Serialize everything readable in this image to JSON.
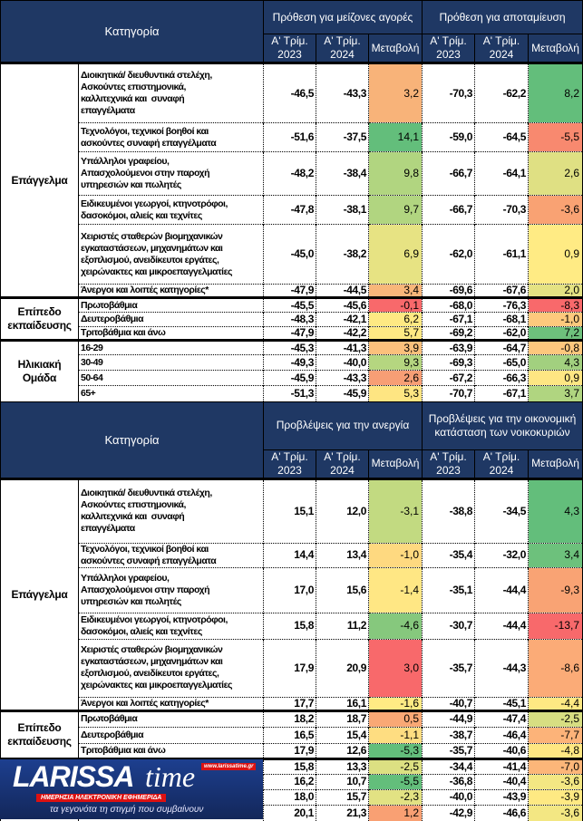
{
  "tables": [
    {
      "header": {
        "category": "Κατηγορία",
        "group1": "Πρόθεση για μείζονες αγορές",
        "group2": "Πρόθεση για αποταμίευση",
        "q2023": "Α' Τρίμ. 2023",
        "q2024": "Α' Τρίμ. 2024",
        "change": "Μεταβολή"
      },
      "groups": [
        {
          "label": "Επάγγελμα",
          "rows": [
            {
              "label": "Διοικητικά/ διευθυντικά στελέχη,\nΑσκούντες επιστημονικά,\nκαλλιτεχνικά και  συναφή\nεπαγγέλματα",
              "values": [
                "-46,5",
                "-43,3",
                "3,2",
                "-70,3",
                "-62,2",
                "8,2"
              ],
              "colors": [
                "#f8b379",
                "#63be7b"
              ]
            },
            {
              "label": "Τεχνολόγοι, τεχνικοί βοηθοί και\nασκούντες συναφή επαγγέλματα",
              "values": [
                "-51,6",
                "-37,5",
                "14,1",
                "-59,0",
                "-64,5",
                "-5,5"
              ],
              "colors": [
                "#63be7b",
                "#f8896f"
              ]
            },
            {
              "label": "Υπάλληλοι γραφείου,\nΑπασχολούμενοι στην παροχή\nυπηρεσιών και πωλητές",
              "values": [
                "-48,2",
                "-38,4",
                "9,8",
                "-66,7",
                "-64,1",
                "2,6"
              ],
              "colors": [
                "#b1d580",
                "#dfe083"
              ]
            },
            {
              "label": "Ειδικευμένοι γεωργοί, κτηνοτρόφοι,\nδασοκόμοι, αλιείς και τεχνίτες",
              "values": [
                "-47,8",
                "-38,1",
                "9,7",
                "-66,7",
                "-70,3",
                "-3,6"
              ],
              "colors": [
                "#b1d580",
                "#f9a273"
              ]
            },
            {
              "label": "Χειριστές σταθερών βιομηχανικών\nεγκαταστάσεων, μηχανημάτων και\nεξοπλισμού, ανειδίκευτοι εργάτες,\nχειρώνακτες και μικροεπαγγελματίες",
              "values": [
                "-45,0",
                "-38,2",
                "6,9",
                "-62,0",
                "-61,1",
                "0,9"
              ],
              "colors": [
                "#e7e383",
                "#ffeb84"
              ]
            },
            {
              "label": "Άνεργοι και λοιπές κατηγορίες*",
              "values": [
                "-47,9",
                "-44,5",
                "3,4",
                "-69,6",
                "-67,6",
                "2,0"
              ],
              "colors": [
                "#f8b67a",
                "#e4e283"
              ]
            }
          ]
        },
        {
          "label": "Επίπεδο εκπαίδευσης",
          "rows": [
            {
              "label": "Πρωτοβάθμια",
              "values": [
                "-45,5",
                "-45,6",
                "-0,1",
                "-68,0",
                "-76,3",
                "-8,3"
              ],
              "colors": [
                "#f8696b",
                "#f8696b"
              ]
            },
            {
              "label": "Δευτεροβάθμια",
              "values": [
                "-48,3",
                "-42,1",
                "6,2",
                "-67,1",
                "-68,1",
                "-1,0"
              ],
              "colors": [
                "#fee983",
                "#fdc97d"
              ]
            },
            {
              "label": "Τριτοβάθμια και άνω",
              "values": [
                "-47,9",
                "-42,2",
                "5,7",
                "-69,2",
                "-62,0",
                "7,2"
              ],
              "colors": [
                "#fee983",
                "#6ec17c"
              ]
            }
          ]
        },
        {
          "label": "Ηλικιακή Ομάδα",
          "rows": [
            {
              "label": "16-29",
              "values": [
                "-45,3",
                "-41,3",
                "3,9",
                "-63,9",
                "-64,7",
                "-0,8"
              ],
              "colors": [
                "#fbc07c",
                "#fdc77d"
              ]
            },
            {
              "label": "30-49",
              "values": [
                "-49,3",
                "-40,0",
                "9,3",
                "-69,3",
                "-65,0",
                "4,3"
              ],
              "colors": [
                "#b5d680",
                "#a2d07f"
              ]
            },
            {
              "label": "50-64",
              "values": [
                "-45,9",
                "-43,3",
                "2,6",
                "-67,2",
                "-66,3",
                "0,9"
              ],
              "colors": [
                "#f79e75",
                "#fee683"
              ]
            },
            {
              "label": "65+",
              "values": [
                "-51,3",
                "-45,9",
                "5,3",
                "-70,7",
                "-67,1",
                "3,7"
              ],
              "colors": [
                "#fee582",
                "#b0d580"
              ]
            }
          ]
        }
      ]
    },
    {
      "header": {
        "category": "Κατηγορία",
        "group1": "Προβλέψεις για την ανεργία",
        "group2": "Προβλέψεις για την οικονομική κατάσταση των νοικοκυριών",
        "q2023": "Α' Τρίμ. 2023",
        "q2024": "Α' Τρίμ. 2024",
        "change": "Μεταβολή"
      },
      "groups": [
        {
          "label": "Επάγγελμα",
          "rows": [
            {
              "label": "Διοικητικά/ διευθυντικά στελέχη,\nΑσκούντες επιστημονικά,\nκαλλιτεχνικά και  συναφή\nεπαγγέλματα",
              "values": [
                "15,1",
                "12,0",
                "-3,1",
                "-38,8",
                "-34,5",
                "4,3"
              ],
              "colors": [
                "#c2da81",
                "#63be7b"
              ]
            },
            {
              "label": "Τεχνολόγοι, τεχνικοί βοηθοί και\nασκούντες συναφή επαγγέλματα",
              "values": [
                "14,4",
                "13,4",
                "-1,0",
                "-35,4",
                "-32,0",
                "3,4"
              ],
              "colors": [
                "#fed980",
                "#6dc17c"
              ]
            },
            {
              "label": "Υπάλληλοι γραφείου,\nΑπασχολούμενοι στην παροχή\nυπηρεσιών και πωλητές",
              "values": [
                "17,0",
                "15,6",
                "-1,4",
                "-35,1",
                "-44,4",
                "-9,3"
              ],
              "colors": [
                "#ffe784",
                "#f9a374"
              ]
            },
            {
              "label": "Ειδικευμένοι γεωργοί, κτηνοτρόφοι,\nδασοκόμοι, αλιείς και τεχνίτες",
              "values": [
                "15,8",
                "11,2",
                "-4,6",
                "-30,7",
                "-44,4",
                "-13,7"
              ],
              "colors": [
                "#86c87d",
                "#f8696b"
              ]
            },
            {
              "label": "Χειριστές σταθερών βιομηχανικών\nεγκαταστάσεων, μηχανημάτων και\nεξοπλισμού, ανειδίκευτοι εργάτες,\nχειρώνακτες και μικροεπαγγελματίες",
              "values": [
                "17,9",
                "20,9",
                "3,0",
                "-35,7",
                "-44,3",
                "-8,6"
              ],
              "colors": [
                "#f8696b",
                "#fbab77"
              ]
            },
            {
              "label": "Άνεργοι και λοιπές κατηγορίες*",
              "values": [
                "17,7",
                "16,1",
                "-1,6",
                "-40,7",
                "-45,1",
                "-4,4"
              ],
              "colors": [
                "#ffeb84",
                "#fee983"
              ]
            }
          ]
        },
        {
          "label": "Επίπεδο εκπαίδευσης",
          "rows": [
            {
              "label": "Πρωτοβάθμια",
              "values": [
                "18,2",
                "18,7",
                "0,5",
                "-44,9",
                "-47,4",
                "-2,5"
              ],
              "colors": [
                "#f9a875",
                "#d7de82"
              ]
            },
            {
              "label": "Δευτεροβάθμια",
              "values": [
                "16,5",
                "15,4",
                "-1,1",
                "-38,7",
                "-46,4",
                "-7,7"
              ],
              "colors": [
                "#fedd81",
                "#fcb379"
              ]
            },
            {
              "label": "Τριτοβάθμια και άνω",
              "values": [
                "17,9",
                "12,6",
                "-5,3",
                "-35,7",
                "-40,6",
                "-4,8"
              ],
              "colors": [
                "#63be7b",
                "#fee782"
              ]
            }
          ]
        },
        {
          "label": "",
          "rows": [
            {
              "label": "",
              "values": [
                "15,8",
                "13,3",
                "-2,5",
                "-34,4",
                "-41,4",
                "-7,0"
              ],
              "colors": [
                "#dce082",
                "#fcb679"
              ]
            },
            {
              "label": "",
              "values": [
                "16,2",
                "10,7",
                "-5,5",
                "-36,8",
                "-40,4",
                "-3,6"
              ],
              "colors": [
                "#63be7b",
                "#f3e783"
              ]
            },
            {
              "label": "",
              "values": [
                "18,0",
                "15,7",
                "-2,3",
                "-40,0",
                "-43,9",
                "-3,9"
              ],
              "colors": [
                "#e2e283",
                "#fee983"
              ]
            },
            {
              "label": "",
              "values": [
                "20,1",
                "21,3",
                "1,2",
                "-42,9",
                "-46,6",
                "-3,6"
              ],
              "colors": [
                "#f9a073",
                "#f3e783"
              ]
            }
          ]
        }
      ]
    }
  ],
  "logo": {
    "brand": "LARISSA",
    "time": "time",
    "url": "www.larissatime.gr",
    "strip": "ΗΜΕΡΗΣΙΑ ΗΛΕΚΤΡΟΝΙΚΗ ΕΦΗΜΕΡΙΔΑ",
    "slogan": "τα γεγονότα τη στιγμή που συμβαίνουν"
  }
}
